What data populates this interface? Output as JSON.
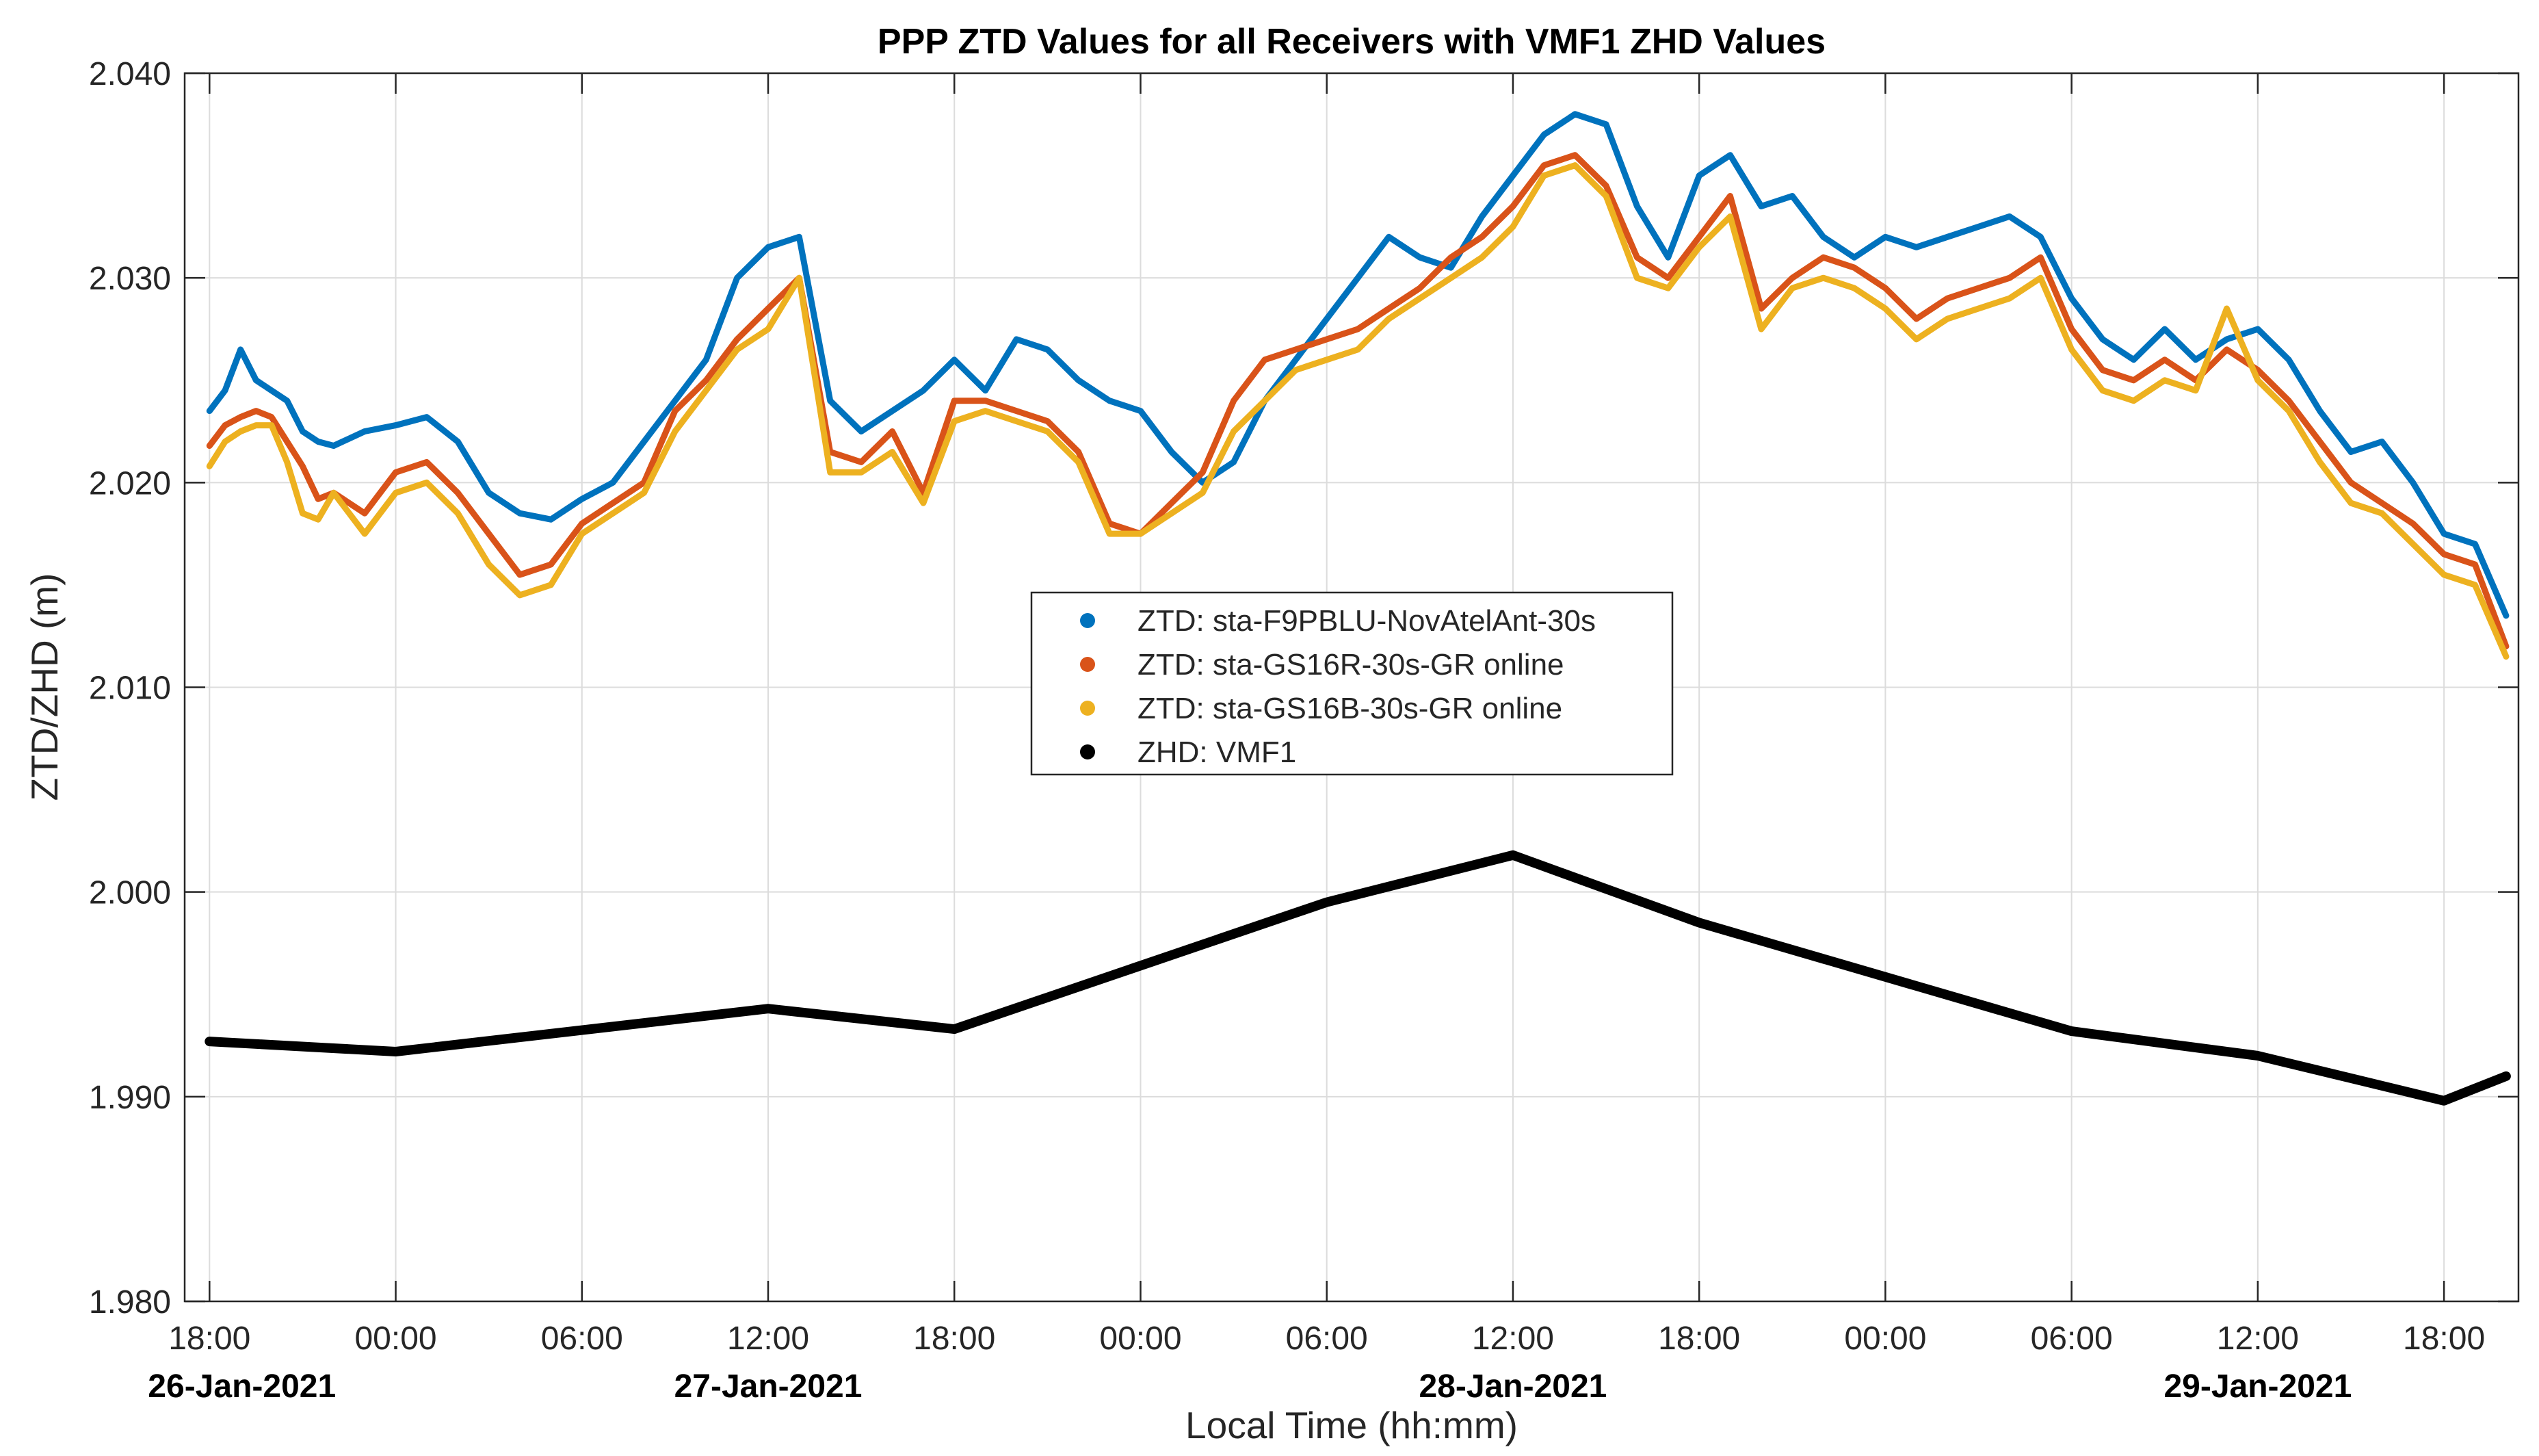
{
  "chart_data": {
    "type": "line",
    "title": "PPP ZTD Values for all Receivers with VMF1 ZHD Values",
    "xlabel": "Local Time (hh:mm)",
    "ylabel": "ZTD/ZHD (m)",
    "ylim": [
      1.98,
      2.04
    ],
    "xlim_hours": [
      -0.8,
      74.4
    ],
    "y_ticks": [
      1.98,
      1.99,
      2.0,
      2.01,
      2.02,
      2.03,
      2.04
    ],
    "y_tick_labels": [
      "1.980",
      "1.990",
      "2.000",
      "2.010",
      "2.020",
      "2.030",
      "2.040"
    ],
    "x_ticks_hours": [
      0,
      6,
      12,
      18,
      24,
      30,
      36,
      42,
      48,
      54,
      60,
      66,
      72
    ],
    "x_tick_labels": [
      "18:00",
      "00:00",
      "06:00",
      "12:00",
      "18:00",
      "00:00",
      "06:00",
      "12:00",
      "18:00",
      "00:00",
      "06:00",
      "12:00",
      "18:00"
    ],
    "x_date_labels": [
      {
        "hour": 0,
        "label": "26-Jan-2021"
      },
      {
        "hour": 18,
        "label": "27-Jan-2021"
      },
      {
        "hour": 42,
        "label": "28-Jan-2021"
      },
      {
        "hour": 66,
        "label": "29-Jan-2021"
      }
    ],
    "grid": true,
    "legend_position": "center",
    "series": [
      {
        "name": "ZTD: sta-F9PBLU-NovAtelAnt-30s",
        "color": "#0072BD",
        "x": [
          0,
          0.5,
          1,
          1.5,
          2,
          2.5,
          3,
          3.5,
          4,
          5,
          6,
          7,
          8,
          9,
          10,
          11,
          12,
          13,
          14,
          15,
          16,
          17,
          18,
          19,
          20,
          21,
          22,
          23,
          24,
          25,
          26,
          27,
          28,
          29,
          30,
          31,
          32,
          33,
          34,
          35,
          36,
          37,
          38,
          39,
          40,
          41,
          42,
          43,
          44,
          45,
          46,
          47,
          48,
          49,
          50,
          51,
          52,
          53,
          54,
          55,
          56,
          57,
          58,
          59,
          60,
          61,
          62,
          63,
          64,
          65,
          66,
          67,
          68,
          69,
          70,
          71,
          72,
          73,
          74
        ],
        "values": [
          2.0235,
          2.0245,
          2.0265,
          2.025,
          2.0245,
          2.024,
          2.0225,
          2.022,
          2.0218,
          2.0225,
          2.0228,
          2.0232,
          2.022,
          2.0195,
          2.0185,
          2.0182,
          2.0192,
          2.02,
          2.022,
          2.024,
          2.026,
          2.03,
          2.0315,
          2.032,
          2.024,
          2.0225,
          2.0235,
          2.0245,
          2.026,
          2.0245,
          2.027,
          2.0265,
          2.025,
          2.024,
          2.0235,
          2.0215,
          2.02,
          2.021,
          2.024,
          2.026,
          2.028,
          2.03,
          2.032,
          2.031,
          2.0305,
          2.033,
          2.035,
          2.037,
          2.038,
          2.0375,
          2.0335,
          2.031,
          2.035,
          2.036,
          2.0335,
          2.034,
          2.032,
          2.031,
          2.032,
          2.0315,
          2.032,
          2.0325,
          2.033,
          2.032,
          2.029,
          2.027,
          2.026,
          2.0275,
          2.026,
          2.027,
          2.0275,
          2.026,
          2.0235,
          2.0215,
          2.022,
          2.02,
          2.0175,
          2.017,
          2.0135
        ]
      },
      {
        "name": "ZTD: sta-GS16R-30s-GR online",
        "color": "#D95319",
        "x": [
          0,
          0.5,
          1,
          1.5,
          2,
          2.5,
          3,
          3.5,
          4,
          5,
          6,
          7,
          8,
          9,
          10,
          11,
          12,
          13,
          14,
          15,
          16,
          17,
          18,
          19,
          20,
          21,
          22,
          23,
          24,
          25,
          26,
          27,
          28,
          29,
          30,
          31,
          32,
          33,
          34,
          35,
          36,
          37,
          38,
          39,
          40,
          41,
          42,
          43,
          44,
          45,
          46,
          47,
          48,
          49,
          50,
          51,
          52,
          53,
          54,
          55,
          56,
          57,
          58,
          59,
          60,
          61,
          62,
          63,
          64,
          65,
          66,
          67,
          68,
          69,
          70,
          71,
          72,
          73,
          74
        ],
        "values": [
          2.0218,
          2.0228,
          2.0232,
          2.0235,
          2.0232,
          2.022,
          2.0208,
          2.0192,
          2.0195,
          2.0185,
          2.0205,
          2.021,
          2.0195,
          2.0175,
          2.0155,
          2.016,
          2.018,
          2.019,
          2.02,
          2.0235,
          2.025,
          2.027,
          2.0285,
          2.03,
          2.0215,
          2.021,
          2.0225,
          2.0195,
          2.024,
          2.024,
          2.0235,
          2.023,
          2.0215,
          2.018,
          2.0175,
          2.019,
          2.0205,
          2.024,
          2.026,
          2.0265,
          2.027,
          2.0275,
          2.0285,
          2.0295,
          2.031,
          2.032,
          2.0335,
          2.0355,
          2.036,
          2.0345,
          2.031,
          2.03,
          2.032,
          2.034,
          2.0285,
          2.03,
          2.031,
          2.0305,
          2.0295,
          2.028,
          2.029,
          2.0295,
          2.03,
          2.031,
          2.0275,
          2.0255,
          2.025,
          2.026,
          2.025,
          2.0265,
          2.0255,
          2.024,
          2.022,
          2.02,
          2.019,
          2.018,
          2.0165,
          2.016,
          2.012
        ]
      },
      {
        "name": "ZTD: sta-GS16B-30s-GR online",
        "color": "#EDB120",
        "x": [
          0,
          0.5,
          1,
          1.5,
          2,
          2.5,
          3,
          3.5,
          4,
          5,
          6,
          7,
          8,
          9,
          10,
          11,
          12,
          13,
          14,
          15,
          16,
          17,
          18,
          19,
          20,
          21,
          22,
          23,
          24,
          25,
          26,
          27,
          28,
          29,
          30,
          31,
          32,
          33,
          34,
          35,
          36,
          37,
          38,
          39,
          40,
          41,
          42,
          43,
          44,
          45,
          46,
          47,
          48,
          49,
          50,
          51,
          52,
          53,
          54,
          55,
          56,
          57,
          58,
          59,
          60,
          61,
          62,
          63,
          64,
          65,
          66,
          67,
          68,
          69,
          70,
          71,
          72,
          73,
          74
        ],
        "values": [
          2.0208,
          2.022,
          2.0225,
          2.0228,
          2.0228,
          2.021,
          2.0185,
          2.0182,
          2.0195,
          2.0175,
          2.0195,
          2.02,
          2.0185,
          2.016,
          2.0145,
          2.015,
          2.0175,
          2.0185,
          2.0195,
          2.0225,
          2.0245,
          2.0265,
          2.0275,
          2.03,
          2.0205,
          2.0205,
          2.0215,
          2.019,
          2.023,
          2.0235,
          2.023,
          2.0225,
          2.021,
          2.0175,
          2.0175,
          2.0185,
          2.0195,
          2.0225,
          2.024,
          2.0255,
          2.026,
          2.0265,
          2.028,
          2.029,
          2.03,
          2.031,
          2.0325,
          2.035,
          2.0355,
          2.034,
          2.03,
          2.0295,
          2.0315,
          2.033,
          2.0275,
          2.0295,
          2.03,
          2.0295,
          2.0285,
          2.027,
          2.028,
          2.0285,
          2.029,
          2.03,
          2.0265,
          2.0245,
          2.024,
          2.025,
          2.0245,
          2.0285,
          2.025,
          2.0235,
          2.021,
          2.019,
          2.0185,
          2.017,
          2.0155,
          2.015,
          2.0115
        ]
      },
      {
        "name": "ZHD: VMF1",
        "color": "#000000",
        "x": [
          0,
          6,
          18,
          24,
          36,
          42,
          48,
          60,
          66,
          72,
          74
        ],
        "values": [
          1.9927,
          1.9922,
          1.9943,
          1.9933,
          1.9995,
          2.0018,
          1.9985,
          1.9932,
          1.992,
          1.9898,
          1.991
        ]
      }
    ]
  }
}
